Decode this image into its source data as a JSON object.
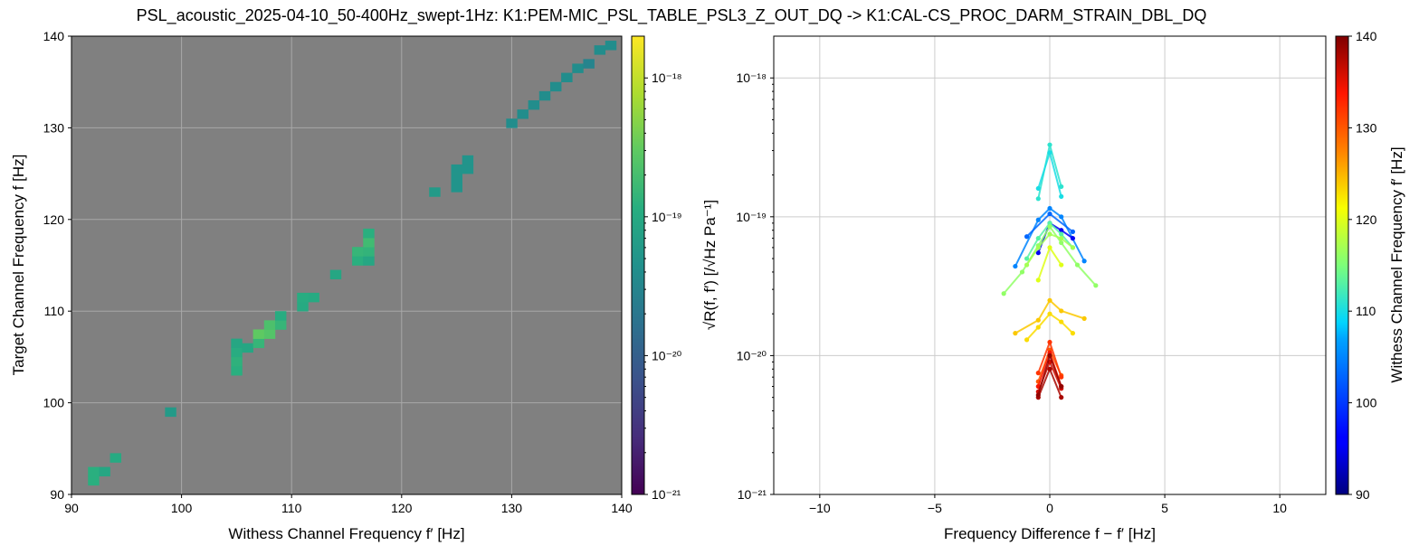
{
  "title": "PSL_acoustic_2025-04-10_50-400Hz_swept-1Hz: K1:PEM-MIC_PSL_TABLE_PSL3_Z_OUT_DQ -> K1:CAL-CS_PROC_DARM_STRAIN_DBL_DQ",
  "chart_data": [
    {
      "type": "heatmap",
      "xlabel": "Withess Channel Frequency  f′ [Hz]",
      "ylabel": "Target Channel Frequency  f [Hz]",
      "xlim": [
        90,
        140
      ],
      "ylim": [
        90,
        140
      ],
      "xticks": [
        "90",
        "100",
        "110",
        "120",
        "130",
        "140"
      ],
      "yticks": [
        "90",
        "100",
        "110",
        "120",
        "130",
        "140"
      ],
      "background_color": "#808080",
      "grid": true,
      "colorbar": {
        "label": "√R(f, f′)  [/√Hz Pa⁻¹]",
        "scale": "log",
        "range": [
          1e-21,
          2e-18
        ],
        "colormap": "viridis",
        "ticks": [
          "10⁻¹⁸",
          "10⁻¹⁹",
          "10⁻²⁰",
          "10⁻²¹"
        ]
      },
      "cells": [
        {
          "x": 92,
          "y": 91.5,
          "v": 1.2e-19
        },
        {
          "x": 92,
          "y": 92.5,
          "v": 1.2e-19
        },
        {
          "x": 93,
          "y": 92.5,
          "v": 9e-20
        },
        {
          "x": 94,
          "y": 94,
          "v": 1e-19
        },
        {
          "x": 99,
          "y": 99,
          "v": 6e-20
        },
        {
          "x": 105,
          "y": 103.5,
          "v": 1.2e-19
        },
        {
          "x": 105,
          "y": 104.5,
          "v": 1.3e-19
        },
        {
          "x": 105,
          "y": 105.5,
          "v": 1.1e-19
        },
        {
          "x": 105,
          "y": 106.5,
          "v": 9e-20
        },
        {
          "x": 106,
          "y": 106,
          "v": 9e-20
        },
        {
          "x": 107,
          "y": 106.5,
          "v": 1.5e-19
        },
        {
          "x": 107,
          "y": 107.5,
          "v": 3e-19
        },
        {
          "x": 108,
          "y": 107.5,
          "v": 2.5e-19
        },
        {
          "x": 108,
          "y": 108.5,
          "v": 2.2e-19
        },
        {
          "x": 109,
          "y": 108.5,
          "v": 1.5e-19
        },
        {
          "x": 109,
          "y": 109.5,
          "v": 1.1e-19
        },
        {
          "x": 111,
          "y": 110.5,
          "v": 1e-19
        },
        {
          "x": 111,
          "y": 111.5,
          "v": 1.1e-19
        },
        {
          "x": 112,
          "y": 111.5,
          "v": 1e-19
        },
        {
          "x": 114,
          "y": 114,
          "v": 9e-20
        },
        {
          "x": 116,
          "y": 115.5,
          "v": 1.2e-19
        },
        {
          "x": 116,
          "y": 116.5,
          "v": 1.5e-19
        },
        {
          "x": 117,
          "y": 115.5,
          "v": 9e-20
        },
        {
          "x": 117,
          "y": 116.5,
          "v": 1.4e-19
        },
        {
          "x": 117,
          "y": 117.5,
          "v": 1.8e-19
        },
        {
          "x": 117,
          "y": 118.5,
          "v": 1.2e-19
        },
        {
          "x": 123,
          "y": 123,
          "v": 6e-20
        },
        {
          "x": 125,
          "y": 123.5,
          "v": 5e-20
        },
        {
          "x": 125,
          "y": 124.5,
          "v": 5e-20
        },
        {
          "x": 125,
          "y": 125.5,
          "v": 5e-20
        },
        {
          "x": 126,
          "y": 125.5,
          "v": 5e-20
        },
        {
          "x": 126,
          "y": 126.5,
          "v": 5e-20
        },
        {
          "x": 130,
          "y": 130.5,
          "v": 4e-20
        },
        {
          "x": 131,
          "y": 131.5,
          "v": 4e-20
        },
        {
          "x": 132,
          "y": 132.5,
          "v": 4e-20
        },
        {
          "x": 133,
          "y": 133.5,
          "v": 4e-20
        },
        {
          "x": 134,
          "y": 134.5,
          "v": 4e-20
        },
        {
          "x": 135,
          "y": 135.5,
          "v": 4e-20
        },
        {
          "x": 136,
          "y": 136.5,
          "v": 4e-20
        },
        {
          "x": 137,
          "y": 137,
          "v": 3e-20
        },
        {
          "x": 138,
          "y": 138.5,
          "v": 4e-20
        },
        {
          "x": 139,
          "y": 139,
          "v": 4e-20
        }
      ]
    },
    {
      "type": "line",
      "xlabel": "Frequency Difference f − f′ [Hz]",
      "ylabel": "",
      "xlim": [
        -12,
        12
      ],
      "ylim": [
        1e-21,
        2e-18
      ],
      "yscale": "log",
      "xticks": [
        "−10",
        "−5",
        "0",
        "5",
        "10"
      ],
      "yticks": [
        "10⁻¹⁸",
        "10⁻¹⁹",
        "10⁻²⁰",
        "10⁻²¹"
      ],
      "grid": true,
      "colorbar": {
        "label": "Withess Channel Frequency  f′ [Hz]",
        "range": [
          90,
          140
        ],
        "colormap": "jet",
        "ticks": [
          "140",
          "130",
          "120",
          "110",
          "100",
          "90"
        ]
      },
      "series": [
        {
          "fw": 111,
          "x": [
            -0.5,
            0,
            0.5
          ],
          "y": [
            1.35e-19,
            3.3e-19,
            1.65e-19
          ]
        },
        {
          "fw": 110,
          "x": [
            -0.5,
            0,
            0.5
          ],
          "y": [
            1.6e-19,
            2.9e-19,
            1.4e-19
          ]
        },
        {
          "fw": 105,
          "x": [
            -1.5,
            -0.5,
            0,
            0.5,
            1.5
          ],
          "y": [
            4.4e-20,
            9.5e-20,
            1.15e-19,
            1e-19,
            4.8e-20
          ]
        },
        {
          "fw": 103,
          "x": [
            -1,
            0,
            1
          ],
          "y": [
            7.2e-20,
            1.05e-19,
            7.8e-20
          ]
        },
        {
          "fw": 95,
          "x": [
            -0.5,
            0,
            0.5,
            1
          ],
          "y": [
            5.5e-20,
            9e-20,
            8e-20,
            7e-20
          ]
        },
        {
          "fw": 113,
          "x": [
            -1,
            -0.5,
            0,
            0.5,
            1
          ],
          "y": [
            5e-20,
            7e-20,
            9e-20,
            7.5e-20,
            6e-20
          ]
        },
        {
          "fw": 116,
          "x": [
            -2,
            -1.2,
            -0.5,
            0,
            0.5,
            1.2,
            2
          ],
          "y": [
            2.8e-20,
            4e-20,
            6.2e-20,
            8.5e-20,
            6.5e-20,
            4.5e-20,
            3.2e-20
          ]
        },
        {
          "fw": 117,
          "x": [
            -1,
            -0.5,
            0,
            0.5,
            1
          ],
          "y": [
            4.5e-20,
            6e-20,
            7.5e-20,
            7e-20,
            6e-20
          ]
        },
        {
          "fw": 120,
          "x": [
            -0.5,
            0,
            0.5
          ],
          "y": [
            3.5e-20,
            6e-20,
            4.5e-20
          ]
        },
        {
          "fw": 123,
          "x": [
            -1,
            -0.5,
            0,
            0.5,
            1
          ],
          "y": [
            1.3e-20,
            1.6e-20,
            2e-20,
            1.75e-20,
            1.45e-20
          ]
        },
        {
          "fw": 124,
          "x": [
            -1.5,
            -0.5,
            0,
            0.5,
            1.5
          ],
          "y": [
            1.45e-20,
            1.8e-20,
            2.5e-20,
            2.1e-20,
            1.85e-20
          ]
        },
        {
          "fw": 130,
          "x": [
            -0.5,
            0,
            0.5
          ],
          "y": [
            6.5e-21,
            1.1e-20,
            7.2e-21
          ]
        },
        {
          "fw": 132,
          "x": [
            -0.5,
            0,
            0.5
          ],
          "y": [
            7.5e-21,
            1.25e-20,
            7e-21
          ]
        },
        {
          "fw": 134,
          "x": [
            -0.5,
            0,
            0.5
          ],
          "y": [
            6e-21,
            1.05e-20,
            6e-21
          ]
        },
        {
          "fw": 136,
          "x": [
            -0.5,
            0,
            0.5
          ],
          "y": [
            5.5e-21,
            9e-21,
            5.8e-21
          ]
        },
        {
          "fw": 138,
          "x": [
            -0.5,
            0,
            0.5
          ],
          "y": [
            5e-21,
            8e-21,
            5e-21
          ]
        },
        {
          "fw": 139,
          "x": [
            -0.5,
            0,
            0.5
          ],
          "y": [
            5.2e-21,
            1e-20,
            6e-21
          ]
        }
      ]
    }
  ]
}
